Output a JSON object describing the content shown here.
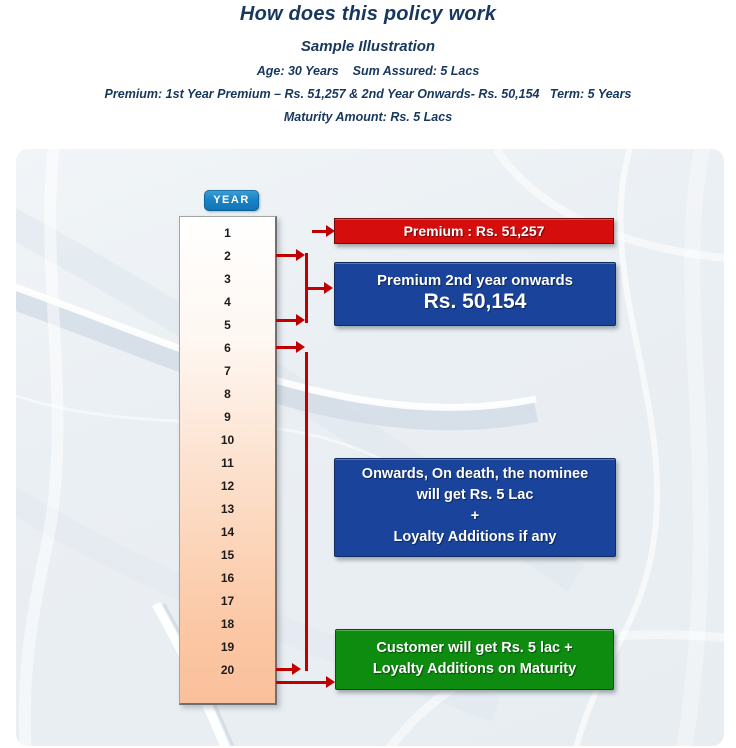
{
  "header": {
    "title": "How does this policy work",
    "subtitle": "Sample Illustration",
    "detail_line1": "Age: 30 Years    Sum Assured: 5 Lacs",
    "detail_line2": "Premium: 1st Year Premium – Rs. 51,257 & 2nd Year Onwards- Rs. 50,154   Term: 5 Years",
    "detail_line3": "Maturity Amount: Rs. 5 Lacs",
    "text_color": "#17375e"
  },
  "diagram": {
    "year_badge_label": "YEAR",
    "years": [
      "1",
      "2",
      "3",
      "4",
      "5",
      "6",
      "7",
      "8",
      "9",
      "10",
      "11",
      "12",
      "13",
      "14",
      "15",
      "16",
      "17",
      "18",
      "19",
      "20"
    ],
    "premium_first_box": {
      "label": "Premium : Rs. 51,257"
    },
    "premium_onwards_box": {
      "line1": "Premium 2nd year onwards",
      "line2": "Rs. 50,154"
    },
    "death_benefit_box": {
      "line1": "Onwards, On death, the nominee",
      "line2": "will get Rs. 5 Lac",
      "line3": "+",
      "line4": "Loyalty Additions if any"
    },
    "maturity_box": {
      "line1": "Customer will get Rs. 5 lac +",
      "line2": "Loyalty Additions on Maturity"
    },
    "colors": {
      "premium_first_box": "#d60d0d",
      "premium_onwards_box": "#1a449c",
      "death_benefit_box": "#1a449c",
      "maturity_box": "#0e8c10",
      "arrow": "#c00000",
      "year_badge": "#1a84c6",
      "header_text": "#17375e",
      "column_gradient_bottom": "#fac09b"
    }
  }
}
